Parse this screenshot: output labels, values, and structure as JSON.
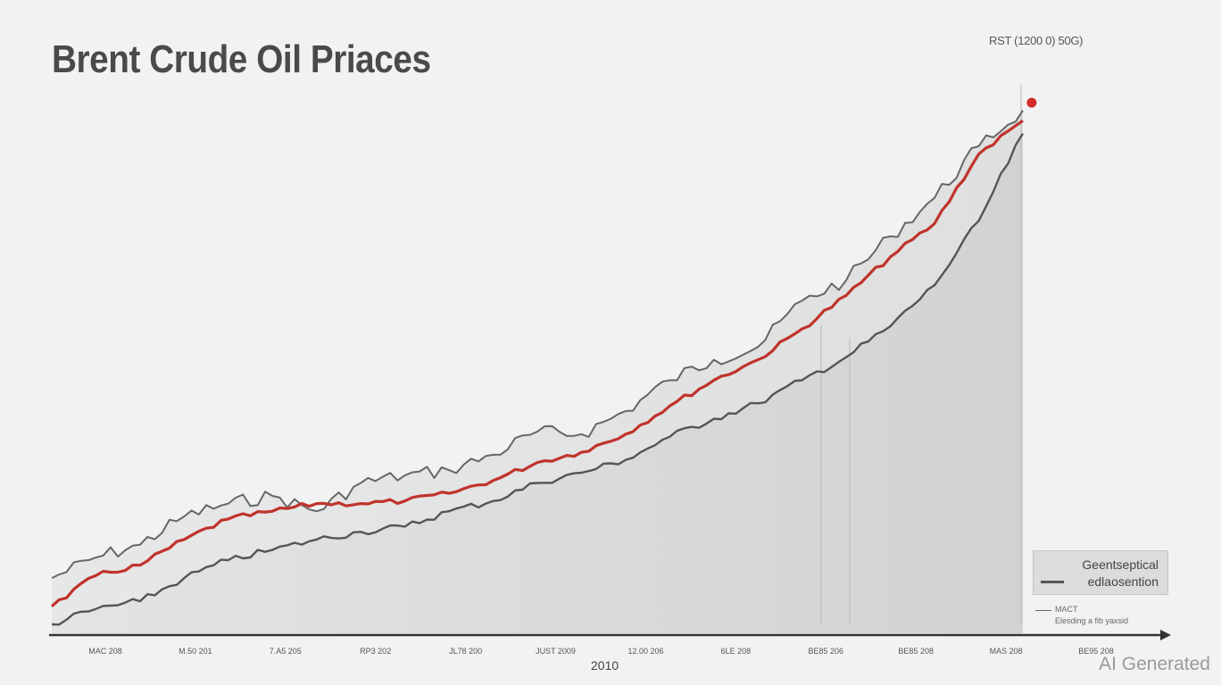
{
  "chart_data": {
    "type": "line",
    "title": "Brent Crude Oil Priaces",
    "annotation": "RST (1200 0) 50G)",
    "xlabel": "2010",
    "x_ticks": [
      "MAC 208",
      "M.50 201",
      "7.A5 205",
      "RP3 202",
      "JL78 200",
      "JUST 2009",
      "12.00 206",
      "6LE 208",
      "BE85 206",
      "BE85 208",
      "MAS 208",
      "BE95 208"
    ],
    "x": [
      0,
      1,
      2,
      3,
      4,
      5,
      6,
      7,
      8,
      9,
      10,
      11,
      12,
      13,
      14,
      15,
      16,
      17,
      18,
      19,
      20,
      21,
      22
    ],
    "series": [
      {
        "name": "",
        "color": "#666666",
        "values": [
          18,
          26,
          31,
          42,
          47,
          50,
          44,
          55,
          58,
          60,
          66,
          75,
          74,
          83,
          95,
          103,
          108,
          126,
          134,
          151,
          166,
          186,
          200
        ]
      },
      {
        "name": "",
        "color": "#c0332b",
        "values": [
          7,
          19,
          23,
          33,
          41,
          44,
          47,
          47,
          48,
          51,
          56,
          63,
          67,
          74,
          85,
          95,
          103,
          115,
          128,
          143,
          156,
          183,
          196
        ]
      },
      {
        "name": "",
        "color": "#555555",
        "values": [
          0,
          6,
          9,
          18,
          25,
          29,
          33,
          36,
          38,
          44,
          48,
          55,
          59,
          64,
          73,
          80,
          86,
          95,
          104,
          116,
          132,
          157,
          191
        ]
      }
    ],
    "ylim": [
      0,
      210
    ],
    "grid": false,
    "legend": {
      "position": "bottom-right",
      "entries": [
        "Geentseptical",
        "edlaosention"
      ],
      "note_line1": "MACT",
      "note_line2": "Elesding a fib yaxsid"
    },
    "highlight_point": {
      "x": 22.2,
      "y": 203,
      "color": "#d62b2b"
    }
  },
  "watermark": "AI Generated"
}
